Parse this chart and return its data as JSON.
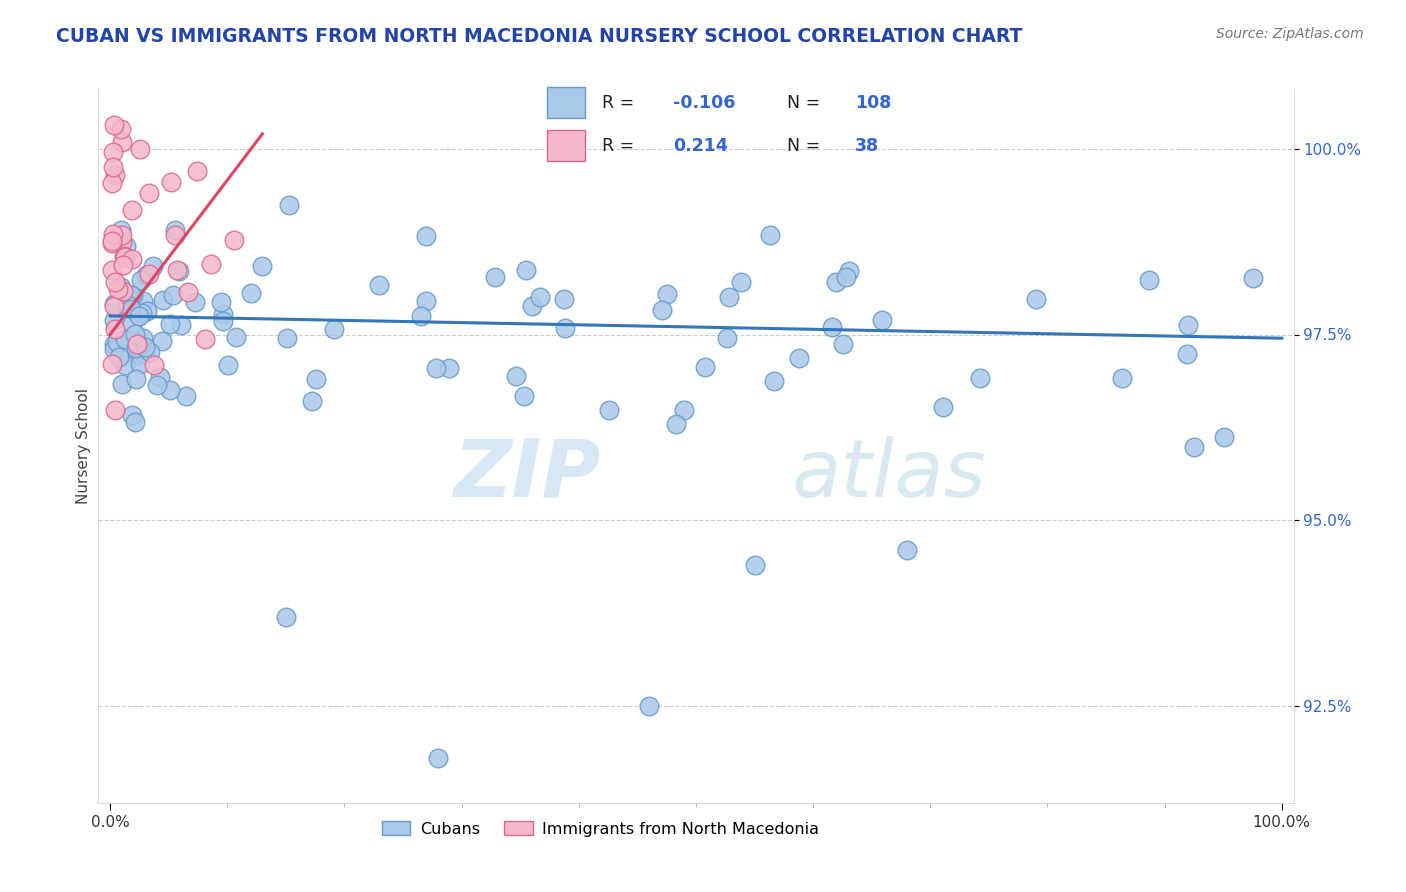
{
  "title": "CUBAN VS IMMIGRANTS FROM NORTH MACEDONIA NURSERY SCHOOL CORRELATION CHART",
  "source": "Source: ZipAtlas.com",
  "ylabel": "Nursery School",
  "r_blue": -0.106,
  "n_blue": 108,
  "r_pink": 0.214,
  "n_pink": 38,
  "blue_color": "#aac8e8",
  "blue_edge": "#6699cc",
  "pink_color": "#f5b8cc",
  "pink_edge": "#dd6688",
  "blue_line_color": "#3377bb",
  "pink_line_color": "#dd4466",
  "watermark_zip": "ZIP",
  "watermark_atlas": "atlas",
  "legend_label_blue": "Cubans",
  "legend_label_pink": "Immigrants from North Macedonia",
  "ylim_min": 91.2,
  "ylim_max": 100.8,
  "xlim_min": -1,
  "xlim_max": 101,
  "yticks": [
    92.5,
    95.0,
    97.5,
    100.0
  ],
  "ytick_labels": [
    "92.5%",
    "95.0%",
    "97.5%",
    "100.0%"
  ],
  "blue_line_x0": 0,
  "blue_line_x1": 100,
  "blue_line_y0": 97.75,
  "blue_line_y1": 97.45,
  "pink_line_x0": 0,
  "pink_line_x1": 13,
  "pink_line_y0": 97.5,
  "pink_line_y1": 100.2,
  "legend_border_color": "#aaccee",
  "title_color": "#2244aa",
  "tick_color_y": "#3366cc",
  "source_color": "#777777",
  "grid_color": "#cccccc"
}
